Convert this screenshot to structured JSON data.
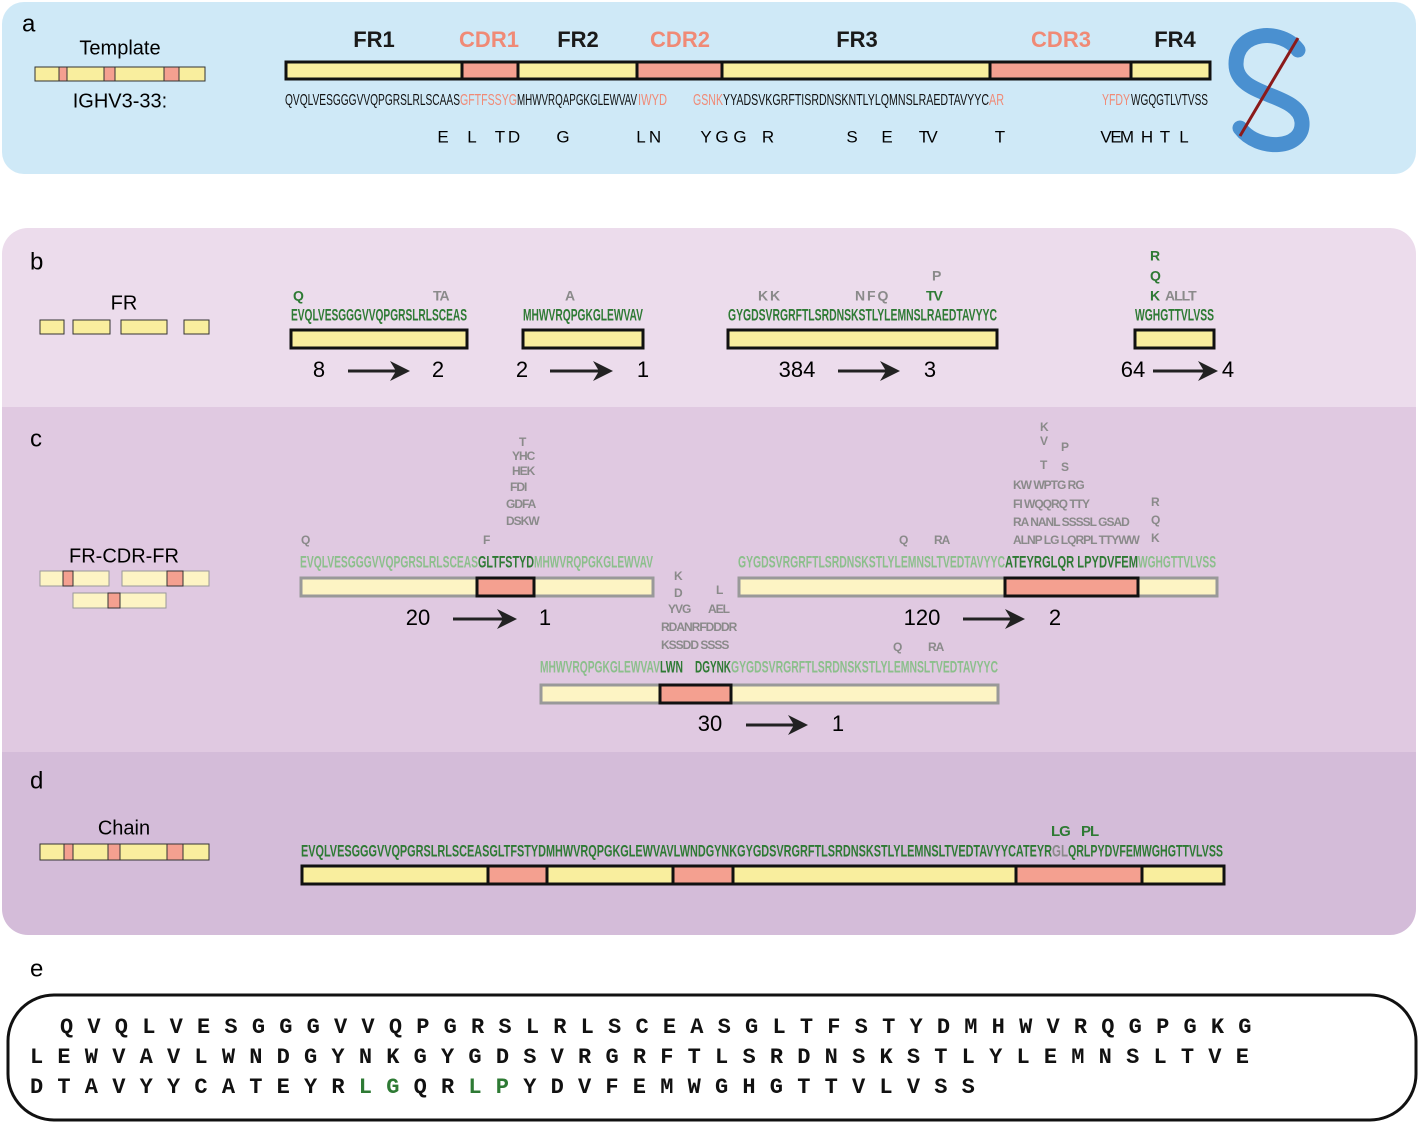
{
  "panel_a": {
    "label": "a",
    "template_label": "Template",
    "germline": "IGHV3-33:",
    "regions": [
      {
        "name": "FR1",
        "color": "#1a1a1a",
        "fill": "#f9ee9e"
      },
      {
        "name": "CDR1",
        "color": "#f08a76",
        "fill": "#f4a090"
      },
      {
        "name": "FR2",
        "color": "#1a1a1a",
        "fill": "#f9ee9e"
      },
      {
        "name": "CDR2",
        "color": "#f08a76",
        "fill": "#f4a090"
      },
      {
        "name": "FR3",
        "color": "#1a1a1a",
        "fill": "#f9ee9e"
      },
      {
        "name": "CDR3",
        "color": "#f08a76",
        "fill": "#f4a090"
      },
      {
        "name": "FR4",
        "color": "#1a1a1a",
        "fill": "#f9ee9e"
      }
    ],
    "sequence": [
      {
        "text": "QVQLVESGGGVVQPGRSLRLSCAAS",
        "color": "#111111"
      },
      {
        "text": "GFTFSSYG",
        "color": "#f08a76"
      },
      {
        "text": "MHWVRQAPGKGLEWVAV",
        "color": "#111111"
      },
      {
        "text": "IWYD",
        "color": "#f08a76"
      },
      {
        "text": "GSNK",
        "color": "#f08a76"
      },
      {
        "text": "YYADSVKGRFTISRDNSKNTLYLQMNSLRAEDTAVYYC",
        "color": "#111111"
      },
      {
        "text": "AR",
        "color": "#f08a76"
      },
      {
        "text": "YFDY",
        "color": "#f08a76"
      },
      {
        "text": "WGQGTLVTVSS",
        "color": "#111111"
      }
    ],
    "mutations": [
      "E",
      "L",
      "T",
      "D",
      "G",
      "L",
      "N",
      "Y",
      "G",
      "G",
      "R",
      "S",
      "E",
      "T",
      "V",
      "T",
      "V",
      "E",
      "M",
      "H",
      "T",
      "L"
    ]
  },
  "panel_b": {
    "label": "b",
    "title": "FR",
    "segments": [
      {
        "sequence": "EVQLVESGGGVVQPGRSLRLSCEAS",
        "variants": [
          {
            "text": "Q",
            "color": "#2e7a34"
          },
          {
            "text": "TA",
            "color": "#8a8a8a"
          }
        ],
        "from": 8,
        "to": 2
      },
      {
        "sequence": "MHWVRQPGKGLEWVAV",
        "variants": [
          {
            "text": "A",
            "color": "#8a8a8a"
          }
        ],
        "from": 2,
        "to": 1
      },
      {
        "sequence": "GYGDSVRGRFTLSRDNSKSTLYLEMNSLRAEDTAVYYC",
        "variants": [
          {
            "text": "K K",
            "color": "#8a8a8a"
          },
          {
            "text": "N F Q",
            "color": "#8a8a8a"
          },
          {
            "text": "TV",
            "color": "#2e7a34"
          },
          {
            "text": "P",
            "color": "#8a8a8a"
          }
        ],
        "from": 384,
        "to": 3
      },
      {
        "sequence": "WGHGTTVLVSS",
        "variants": [
          {
            "text": "R",
            "color": "#2e7a34"
          },
          {
            "text": "Q",
            "color": "#2e7a34"
          },
          {
            "text": "K",
            "color": "#2e7a34"
          },
          {
            "text": "ALLT",
            "color": "#8a8a8a"
          }
        ],
        "from": 64,
        "to": 4
      }
    ]
  },
  "panel_c": {
    "label": "c",
    "title": "FR-CDR-FR",
    "constructs": [
      {
        "sequence": [
          {
            "text": "EVQLVESGGGVVQPGRSLRLSCEAS",
            "color": "#8cbf8c"
          },
          {
            "text": "GLTFSTYD",
            "color": "#2e7a34"
          },
          {
            "text": "MHWVRQPGKGLEWVAV",
            "color": "#8cbf8c"
          }
        ],
        "variants": [
          "Q",
          "F",
          "DSKW",
          "GDFA",
          "FDI",
          "HEK",
          "YHC",
          "T"
        ],
        "from": 20,
        "to": 1
      },
      {
        "sequence": [
          {
            "text": "MHWVRQPGKGLEWVAV",
            "color": "#8cbf8c"
          },
          {
            "text": "LWN",
            "color": "#2e7a34"
          },
          {
            "text": "DGYNK",
            "color": "#2e7a34"
          },
          {
            "text": "GYGDSVRGRFTLSRDNSKSTLYLEMNSLTVEDTAVYYC",
            "color": "#8cbf8c"
          }
        ],
        "variants": [
          "K",
          "D",
          "YVG",
          "RDANRFDDDR",
          "KSSDD SSSS",
          "L",
          "AEL",
          "Q",
          "RA"
        ],
        "from": 30,
        "to": 1
      },
      {
        "sequence": [
          {
            "text": "GYGDSVRGRFTLSRDNSKSTLYLEMNSLTVEDTAVYYC",
            "color": "#8cbf8c"
          },
          {
            "text": "ATEYRGLQR LPYDVFEM",
            "color": "#2e7a34"
          },
          {
            "text": "WGHGTTVLVSS",
            "color": "#8cbf8c"
          }
        ],
        "variants": [
          "K",
          "V",
          "P",
          "T",
          "S",
          "KW  WPTG  RG",
          "FI  WQQRQ TTY",
          "RA  NANL SSSSL GSAD",
          "ALNP LG LQRPL TTYWW",
          "Q",
          "RA",
          "R",
          "Q",
          "K"
        ],
        "from": 120,
        "to": 2
      }
    ]
  },
  "panel_d": {
    "label": "d",
    "title": "Chain",
    "sequence": [
      {
        "text": "EVQLVESGGGVVQPGRSLRLSCEASGLTFSTYDMHWVRQPGKGLEWVAVLWNDGYNKGYGDSVRGRFTLSRDNSKSTLYLEMNSLTVEDTAVYYCATEYR",
        "color": "#2e7a34"
      },
      {
        "text": "GL",
        "color": "#8a8a8a"
      },
      {
        "text": "QRLPYDVFEMWGHGTTVLVSS",
        "color": "#2e7a34"
      }
    ],
    "variants": [
      "LG",
      "PL"
    ]
  },
  "panel_e": {
    "label": "e",
    "lines": [
      [
        {
          "text": "QVQLVESGGGVVQPGRSLRLSCEASGLTFSTYDMHWVRQGPGKG",
          "color": "#111111"
        }
      ],
      [
        {
          "text": "LEWVAVLWNDGYNKGYGDSVRGRFTLSRDNSKSTLYLEMNSLTVE",
          "color": "#111111"
        }
      ],
      [
        {
          "text": "DTAVYYCATEYR",
          "color": "#111111"
        },
        {
          "text": "LG",
          "color": "#2e7a34"
        },
        {
          "text": "QR",
          "color": "#111111"
        },
        {
          "text": "LP",
          "color": "#2e7a34"
        },
        {
          "text": "YDVFEMWGHGTTVLVSS",
          "color": "#111111"
        }
      ]
    ]
  }
}
